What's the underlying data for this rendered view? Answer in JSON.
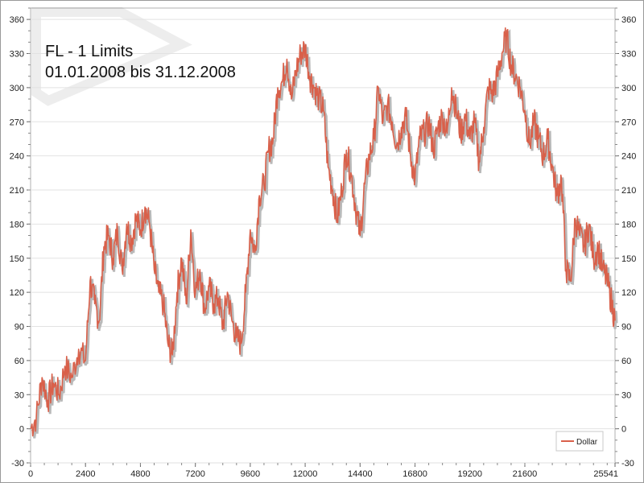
{
  "chart_data": {
    "type": "line",
    "title": "FL  - 1 Limits",
    "subtitle": "01.01.2008 bis 31.12.2008",
    "xlabel": "",
    "ylabel": "",
    "xlim": [
      0,
      25541
    ],
    "ylim": [
      -30,
      370
    ],
    "x_ticks": [
      0,
      2400,
      4800,
      7200,
      9600,
      12000,
      14400,
      16800,
      19200,
      21600,
      25541
    ],
    "y_ticks": [
      -30,
      0,
      30,
      60,
      90,
      120,
      150,
      180,
      210,
      240,
      270,
      300,
      330,
      360
    ],
    "grid": true,
    "legend_position": "bottom-right",
    "series": [
      {
        "name": "Dollar",
        "color": "#d9604a",
        "x": [
          0,
          250,
          500,
          750,
          1000,
          1250,
          1500,
          1800,
          2100,
          2400,
          2600,
          2800,
          3000,
          3200,
          3400,
          3600,
          3800,
          4000,
          4200,
          4400,
          4600,
          4800,
          5000,
          5200,
          5400,
          5600,
          5800,
          6000,
          6200,
          6400,
          6600,
          6800,
          7000,
          7200,
          7400,
          7600,
          7800,
          8000,
          8200,
          8400,
          8600,
          8800,
          9000,
          9200,
          9400,
          9600,
          9800,
          10000,
          10200,
          10400,
          10600,
          10800,
          11000,
          11200,
          11400,
          11600,
          11800,
          12000,
          12200,
          12400,
          12600,
          12800,
          13000,
          13200,
          13400,
          13600,
          13800,
          14000,
          14200,
          14400,
          14600,
          14800,
          15000,
          15200,
          15400,
          15600,
          15800,
          16000,
          16200,
          16400,
          16600,
          16800,
          17000,
          17200,
          17400,
          17600,
          17800,
          18000,
          18200,
          18400,
          18600,
          18800,
          19000,
          19200,
          19400,
          19600,
          19800,
          20000,
          20200,
          20400,
          20600,
          20800,
          21000,
          21200,
          21400,
          21600,
          21800,
          22000,
          22200,
          22400,
          22600,
          22800,
          23000,
          23200,
          23400,
          23600,
          23800,
          24000,
          24200,
          24400,
          24600,
          24800,
          25000,
          25200,
          25400,
          25541
        ],
        "values": [
          0,
          10,
          45,
          25,
          40,
          30,
          55,
          45,
          70,
          60,
          130,
          110,
          95,
          160,
          170,
          150,
          175,
          140,
          180,
          165,
          185,
          175,
          195,
          180,
          140,
          120,
          110,
          75,
          65,
          120,
          150,
          110,
          175,
          120,
          140,
          105,
          125,
          110,
          115,
          90,
          120,
          95,
          80,
          75,
          120,
          175,
          155,
          205,
          215,
          245,
          255,
          300,
          305,
          325,
          290,
          315,
          330,
          335,
          310,
          300,
          290,
          280,
          230,
          210,
          185,
          210,
          245,
          225,
          195,
          170,
          215,
          240,
          255,
          300,
          270,
          285,
          270,
          250,
          265,
          275,
          240,
          220,
          255,
          260,
          270,
          245,
          265,
          275,
          260,
          300,
          280,
          260,
          275,
          255,
          270,
          235,
          265,
          300,
          295,
          310,
          330,
          345,
          320,
          310,
          300,
          280,
          250,
          270,
          255,
          240,
          255,
          230,
          205,
          220,
          140,
          130,
          185,
          170,
          160,
          180,
          150,
          160,
          140,
          130,
          110,
          95
        ]
      }
    ]
  }
}
